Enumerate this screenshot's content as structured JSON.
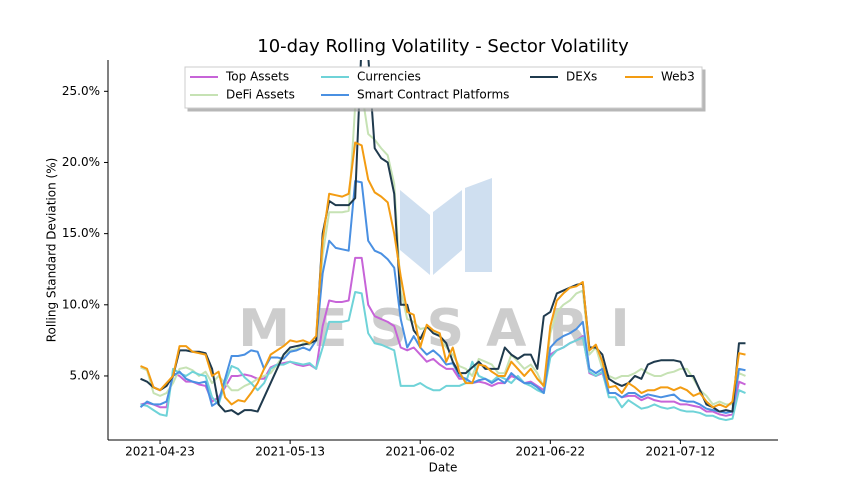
{
  "chart_data": {
    "type": "line",
    "title": "10-day Rolling Volatility - Sector Volatility",
    "xlabel": "Date",
    "ylabel": "Rolling Standard Deviation (%)",
    "watermark": "MESSARI",
    "x": [
      "2021-04-20",
      "2021-04-21",
      "2021-04-22",
      "2021-04-23",
      "2021-04-24",
      "2021-04-25",
      "2021-04-26",
      "2021-04-27",
      "2021-04-28",
      "2021-04-29",
      "2021-04-30",
      "2021-05-01",
      "2021-05-02",
      "2021-05-03",
      "2021-05-04",
      "2021-05-05",
      "2021-05-06",
      "2021-05-07",
      "2021-05-08",
      "2021-05-09",
      "2021-05-10",
      "2021-05-11",
      "2021-05-12",
      "2021-05-13",
      "2021-05-14",
      "2021-05-15",
      "2021-05-16",
      "2021-05-17",
      "2021-05-18",
      "2021-05-19",
      "2021-05-20",
      "2021-05-21",
      "2021-05-22",
      "2021-05-23",
      "2021-05-24",
      "2021-05-25",
      "2021-05-26",
      "2021-05-27",
      "2021-05-28",
      "2021-05-29",
      "2021-05-30",
      "2021-05-31",
      "2021-06-01",
      "2021-06-02",
      "2021-06-03",
      "2021-06-04",
      "2021-06-05",
      "2021-06-06",
      "2021-06-07",
      "2021-06-08",
      "2021-06-09",
      "2021-06-10",
      "2021-06-11",
      "2021-06-12",
      "2021-06-13",
      "2021-06-14",
      "2021-06-15",
      "2021-06-16",
      "2021-06-17",
      "2021-06-18",
      "2021-06-19",
      "2021-06-20",
      "2021-06-21",
      "2021-06-22",
      "2021-06-23",
      "2021-06-24",
      "2021-06-25",
      "2021-06-26",
      "2021-06-27",
      "2021-06-28",
      "2021-06-29",
      "2021-06-30",
      "2021-07-01",
      "2021-07-02",
      "2021-07-03",
      "2021-07-04",
      "2021-07-05",
      "2021-07-06",
      "2021-07-07",
      "2021-07-08",
      "2021-07-09",
      "2021-07-10",
      "2021-07-11",
      "2021-07-12",
      "2021-07-13",
      "2021-07-14",
      "2021-07-15",
      "2021-07-16",
      "2021-07-17",
      "2021-07-18",
      "2021-07-19",
      "2021-07-20",
      "2021-07-21",
      "2021-07-22"
    ],
    "xlim": [
      "2021-04-15",
      "2021-07-27"
    ],
    "xticks": [
      "2021-04-23",
      "2021-05-13",
      "2021-06-02",
      "2021-06-22",
      "2021-07-12"
    ],
    "ylim": [
      0.5,
      27.2
    ],
    "yticks": [
      {
        "value": 5,
        "label": "5.0%"
      },
      {
        "value": 10,
        "label": "10.0%"
      },
      {
        "value": 15,
        "label": "15.0%"
      },
      {
        "value": 20,
        "label": "20.0%"
      },
      {
        "value": 25,
        "label": "25.0%"
      }
    ],
    "grid": false,
    "legend": "upper center",
    "series": [
      {
        "name": "Top Assets",
        "color": "#c764d8",
        "values": [
          3.0,
          3.1,
          3.0,
          2.8,
          2.8,
          5.2,
          5.0,
          4.6,
          4.6,
          4.4,
          4.3,
          3.2,
          3.5,
          4.2,
          5.0,
          5.0,
          5.1,
          5.0,
          4.8,
          4.8,
          5.6,
          5.8,
          5.9,
          6.0,
          5.8,
          5.7,
          5.8,
          5.5,
          8.5,
          10.3,
          10.2,
          10.2,
          10.3,
          13.3,
          13.3,
          10.0,
          9.2,
          9.0,
          8.8,
          8.5,
          7.0,
          6.8,
          7.0,
          6.5,
          6.0,
          6.2,
          5.8,
          5.5,
          5.5,
          4.8,
          4.8,
          4.5,
          4.6,
          4.5,
          4.3,
          4.5,
          4.5,
          5.0,
          4.8,
          4.5,
          4.6,
          4.3,
          4.0,
          6.5,
          6.8,
          7.0,
          7.3,
          7.5,
          7.8,
          5.2,
          5.0,
          5.2,
          3.8,
          3.8,
          3.5,
          3.6,
          3.6,
          3.3,
          3.5,
          3.3,
          3.2,
          3.2,
          3.2,
          3.0,
          3.0,
          2.9,
          2.8,
          2.5,
          2.5,
          2.3,
          2.2,
          2.3,
          4.6,
          4.4
        ]
      },
      {
        "name": "DeFi Assets",
        "color": "#c6e2b4",
        "values": [
          5.6,
          5.4,
          3.8,
          3.6,
          3.8,
          4.5,
          5.5,
          5.6,
          5.4,
          5.0,
          5.3,
          4.5,
          5.0,
          4.5,
          4.0,
          4.0,
          4.3,
          4.5,
          4.8,
          5.0,
          5.2,
          5.8,
          6.5,
          6.8,
          6.9,
          7.3,
          7.2,
          7.5,
          13.5,
          16.5,
          16.5,
          16.5,
          16.6,
          24.0,
          25.0,
          22.0,
          21.6,
          21.0,
          20.5,
          18.5,
          11.0,
          9.0,
          8.8,
          8.3,
          8.4,
          8.2,
          7.8,
          7.0,
          6.5,
          5.7,
          5.5,
          5.0,
          6.2,
          6.0,
          5.8,
          5.2,
          5.2,
          6.5,
          6.0,
          5.5,
          5.8,
          5.2,
          4.2,
          8.0,
          9.5,
          10.0,
          10.3,
          10.8,
          11.0,
          6.5,
          7.0,
          5.5,
          5.0,
          4.8,
          5.0,
          5.0,
          5.2,
          5.5,
          5.2,
          5.0,
          5.0,
          5.2,
          5.3,
          5.5,
          5.5,
          4.8,
          4.0,
          3.6,
          3.0,
          3.2,
          3.0,
          3.0,
          5.2,
          5.0
        ]
      },
      {
        "name": "Currencies",
        "color": "#6fd3d8",
        "values": [
          3.0,
          2.9,
          2.6,
          2.3,
          2.2,
          5.5,
          5.2,
          5.0,
          5.3,
          5.1,
          5.0,
          3.5,
          3.0,
          4.5,
          5.7,
          5.5,
          4.9,
          4.5,
          4.0,
          4.5,
          5.5,
          5.8,
          5.8,
          6.0,
          5.9,
          5.8,
          5.9,
          5.5,
          7.0,
          8.8,
          8.8,
          8.8,
          8.9,
          10.9,
          10.8,
          8.0,
          7.3,
          7.2,
          7.0,
          6.8,
          4.3,
          4.3,
          4.3,
          4.5,
          4.2,
          4.0,
          4.0,
          4.3,
          4.3,
          4.3,
          4.5,
          6.0,
          5.0,
          4.8,
          4.6,
          5.0,
          4.8,
          4.5,
          5.0,
          4.5,
          4.3,
          4.0,
          3.8,
          6.3,
          6.8,
          7.0,
          7.3,
          7.5,
          7.7,
          5.3,
          5.0,
          5.3,
          3.5,
          3.5,
          2.8,
          3.3,
          3.0,
          2.7,
          2.8,
          3.0,
          2.8,
          2.7,
          2.8,
          2.6,
          2.5,
          2.5,
          2.4,
          2.2,
          2.2,
          2.0,
          1.9,
          2.0,
          4.0,
          3.8
        ]
      },
      {
        "name": "Smart Contract Platforms",
        "color": "#4a90e2",
        "values": [
          2.8,
          3.2,
          3.0,
          3.0,
          3.2,
          5.0,
          5.3,
          4.8,
          4.6,
          4.5,
          4.6,
          2.9,
          3.2,
          4.8,
          6.4,
          6.4,
          6.5,
          6.8,
          6.7,
          5.5,
          6.3,
          6.3,
          6.2,
          6.7,
          6.8,
          7.0,
          6.8,
          7.5,
          12.2,
          14.5,
          14.0,
          13.9,
          13.8,
          18.7,
          18.6,
          14.5,
          13.8,
          13.6,
          13.2,
          12.6,
          9.0,
          7.0,
          7.8,
          7.0,
          6.5,
          6.8,
          6.4,
          5.8,
          5.9,
          5.0,
          4.8,
          4.5,
          4.7,
          4.8,
          4.5,
          4.8,
          4.5,
          5.2,
          4.8,
          4.5,
          4.5,
          4.2,
          3.8,
          7.0,
          7.5,
          7.8,
          8.0,
          8.3,
          8.8,
          5.5,
          5.2,
          5.5,
          3.8,
          3.8,
          3.5,
          3.8,
          3.8,
          3.5,
          3.7,
          3.6,
          3.5,
          3.6,
          3.7,
          3.3,
          3.2,
          3.2,
          3.0,
          2.7,
          2.6,
          2.5,
          2.4,
          2.5,
          5.5,
          5.4
        ]
      },
      {
        "name": "DEXs",
        "color": "#1f3a4d",
        "values": [
          4.8,
          4.6,
          4.2,
          4.0,
          4.3,
          5.0,
          6.8,
          6.8,
          6.7,
          6.7,
          6.6,
          5.5,
          3.0,
          2.5,
          2.6,
          2.3,
          2.6,
          2.6,
          2.5,
          3.5,
          4.5,
          5.5,
          6.5,
          7.0,
          7.1,
          7.2,
          7.3,
          7.5,
          15.0,
          17.3,
          17.0,
          17.0,
          17.0,
          17.5,
          28.5,
          27.5,
          21.0,
          20.3,
          20.0,
          17.8,
          10.0,
          10.0,
          8.2,
          7.6,
          8.5,
          8.0,
          7.8,
          7.3,
          6.0,
          5.2,
          5.2,
          5.6,
          6.0,
          5.5,
          5.5,
          5.5,
          7.0,
          6.5,
          6.2,
          6.5,
          6.5,
          5.5,
          9.2,
          9.5,
          10.8,
          11.0,
          11.2,
          11.4,
          11.5,
          7.0,
          7.0,
          6.5,
          4.8,
          4.5,
          4.3,
          4.5,
          5.0,
          4.8,
          5.8,
          6.0,
          6.1,
          6.1,
          6.1,
          6.0,
          5.0,
          5.0,
          4.0,
          3.0,
          2.8,
          2.5,
          2.6,
          2.5,
          7.3,
          7.3
        ]
      },
      {
        "name": "Web3",
        "color": "#f39c12",
        "values": [
          5.7,
          5.5,
          4.2,
          4.0,
          4.5,
          5.0,
          7.1,
          7.1,
          6.7,
          6.6,
          6.5,
          5.0,
          5.3,
          3.5,
          3.0,
          3.3,
          3.2,
          3.8,
          4.5,
          5.5,
          6.5,
          6.8,
          7.1,
          7.5,
          7.4,
          7.5,
          7.3,
          7.8,
          14.5,
          17.8,
          17.7,
          17.6,
          17.8,
          21.4,
          21.2,
          18.8,
          17.9,
          17.6,
          17.2,
          15.0,
          12.0,
          9.5,
          9.3,
          7.0,
          8.6,
          8.2,
          8.0,
          6.0,
          7.0,
          5.3,
          4.5,
          4.5,
          5.8,
          5.7,
          5.3,
          5.0,
          5.0,
          6.0,
          5.5,
          5.0,
          5.5,
          4.8,
          4.3,
          8.5,
          10.3,
          10.8,
          11.2,
          11.3,
          11.6,
          6.8,
          7.2,
          6.0,
          4.2,
          4.3,
          3.8,
          4.5,
          4.2,
          3.8,
          4.0,
          4.0,
          4.2,
          4.2,
          4.0,
          4.2,
          4.0,
          3.6,
          3.8,
          3.2,
          2.8,
          3.0,
          2.8,
          3.2,
          6.6,
          6.5
        ]
      }
    ]
  }
}
